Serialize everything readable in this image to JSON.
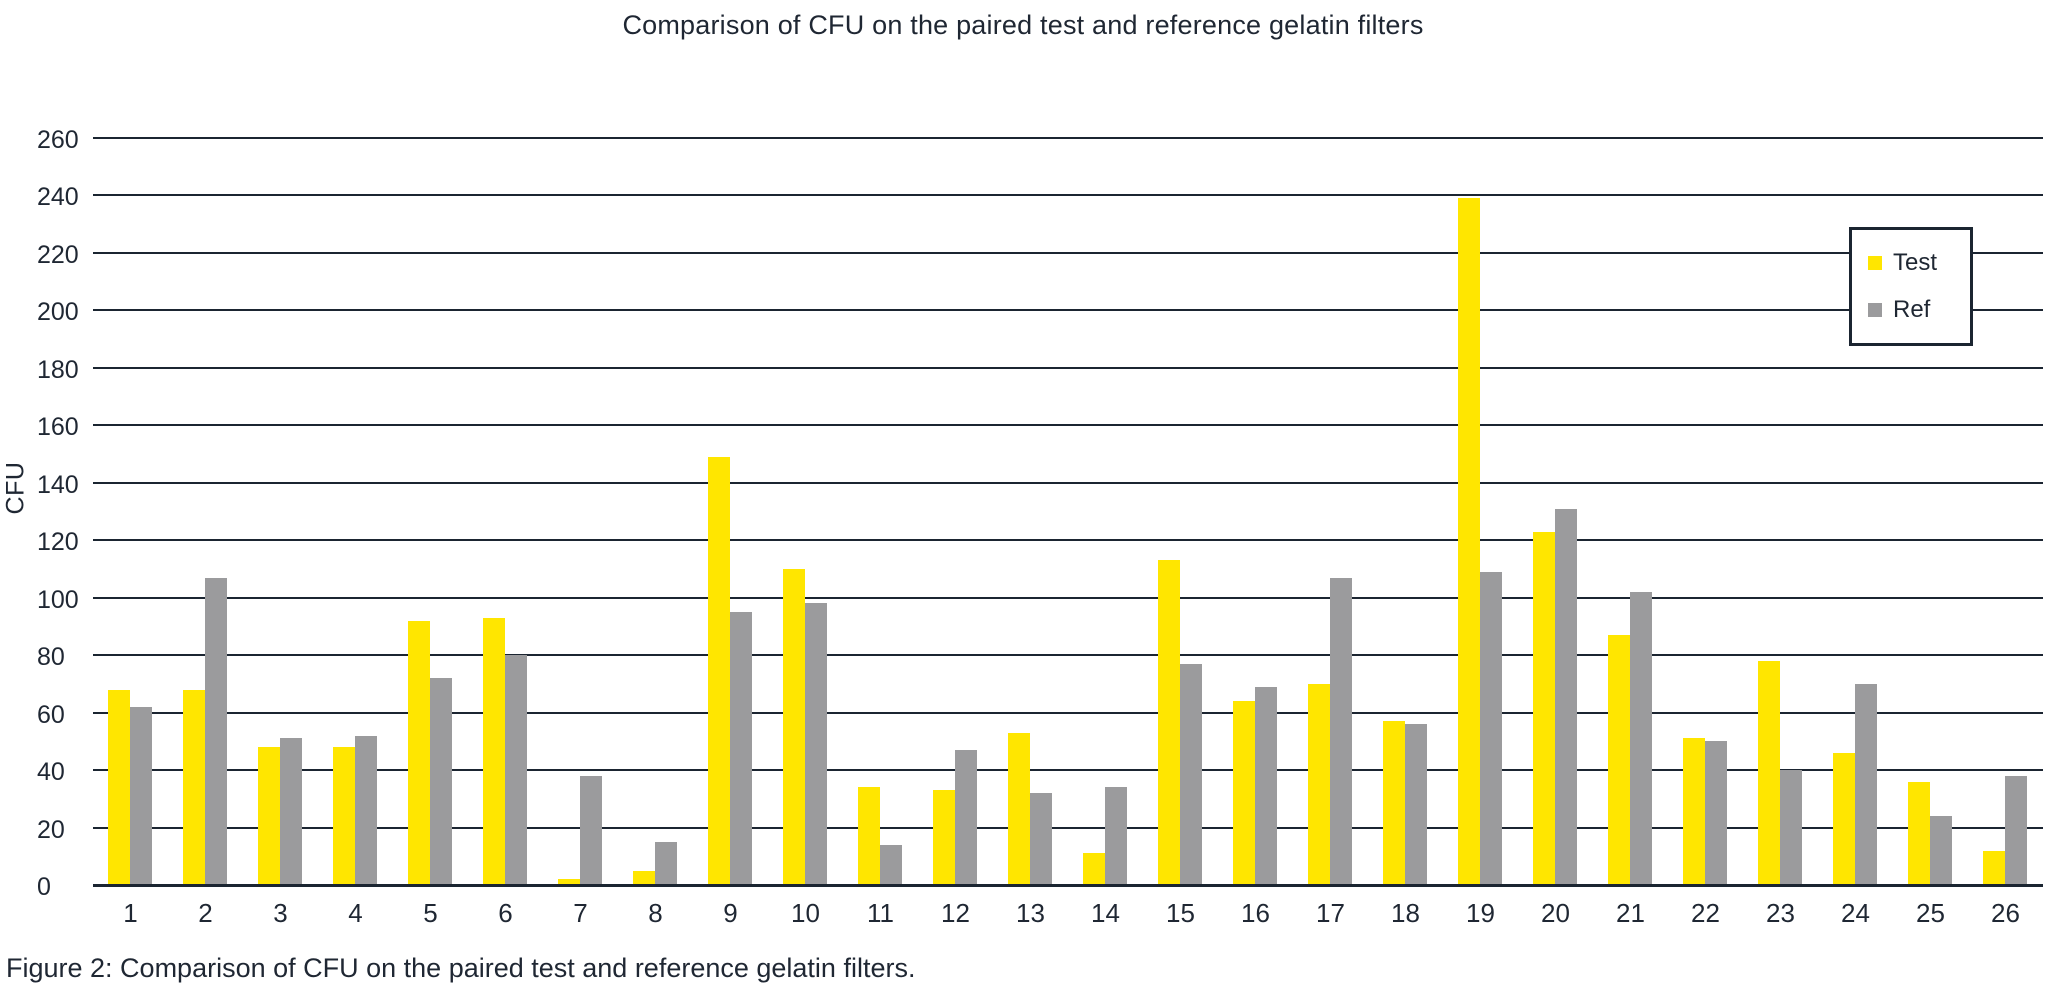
{
  "chart_data": {
    "type": "bar",
    "title": "Comparison of CFU on the paired test and reference gelatin filters",
    "xlabel": "",
    "ylabel": "CFU",
    "ylim": [
      0,
      260
    ],
    "ytick_step": 20,
    "grid": "horizontal",
    "legend_position": "upper right",
    "categories": [
      "1",
      "2",
      "3",
      "4",
      "5",
      "6",
      "7",
      "8",
      "9",
      "10",
      "11",
      "12",
      "13",
      "14",
      "15",
      "16",
      "17",
      "18",
      "19",
      "20",
      "21",
      "22",
      "23",
      "24",
      "25",
      "26"
    ],
    "series": [
      {
        "name": "Test",
        "color": "#ffe600",
        "values": [
          68,
          68,
          48,
          48,
          92,
          93,
          2,
          5,
          149,
          110,
          34,
          33,
          53,
          11,
          113,
          64,
          70,
          57,
          239,
          123,
          87,
          51,
          78,
          46,
          36,
          12
        ]
      },
      {
        "name": "Ref",
        "color": "#9b9b9d",
        "values": [
          62,
          107,
          51,
          52,
          72,
          80,
          38,
          15,
          95,
          98,
          14,
          47,
          32,
          34,
          77,
          69,
          107,
          56,
          109,
          131,
          102,
          50,
          40,
          70,
          24,
          38
        ]
      }
    ]
  },
  "caption": "Figure 2: Comparison of CFU on the paired test and reference gelatin filters.",
  "colors": {
    "axis_line": "#1b2531",
    "text": "#1f2733",
    "background": "#ffffff"
  }
}
